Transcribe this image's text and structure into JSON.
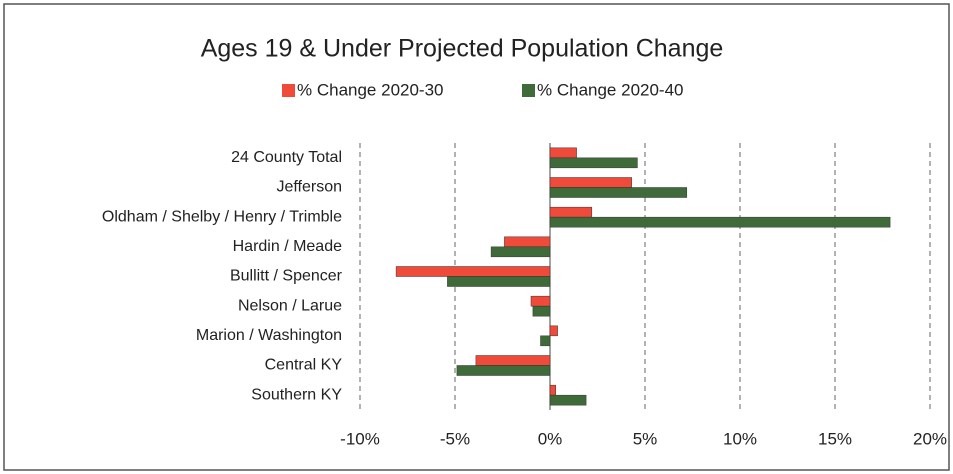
{
  "chart_data": {
    "type": "bar",
    "orientation": "horizontal",
    "title": "Ages 19 & Under Projected Population Change",
    "categories": [
      "24 County Total",
      "Jefferson",
      "Oldham / Shelby / Henry / Trimble",
      "Hardin / Meade",
      "Bullitt / Spencer",
      "Nelson / Larue",
      "Marion / Washington",
      "Central KY",
      "Southern KY"
    ],
    "series": [
      {
        "name": "% Change 2020-30",
        "color": "#f04a3a",
        "values": [
          1.4,
          4.3,
          2.2,
          -2.4,
          -8.1,
          -1.0,
          0.4,
          -3.9,
          0.3
        ]
      },
      {
        "name": "% Change 2020-40",
        "color": "#3f6b3a",
        "values": [
          4.6,
          7.2,
          17.9,
          -3.1,
          -5.4,
          -0.9,
          -0.5,
          -4.9,
          1.9
        ]
      }
    ],
    "xlim": [
      -10,
      20
    ],
    "xticks": [
      {
        "value": -10,
        "label": "-10%"
      },
      {
        "value": -5,
        "label": "-5%"
      },
      {
        "value": 0,
        "label": "0%"
      },
      {
        "value": 5,
        "label": "5%"
      },
      {
        "value": 10,
        "label": "10%"
      },
      {
        "value": 15,
        "label": "15%"
      },
      {
        "value": 20,
        "label": "20%"
      }
    ],
    "grid": true,
    "legend": "top"
  }
}
